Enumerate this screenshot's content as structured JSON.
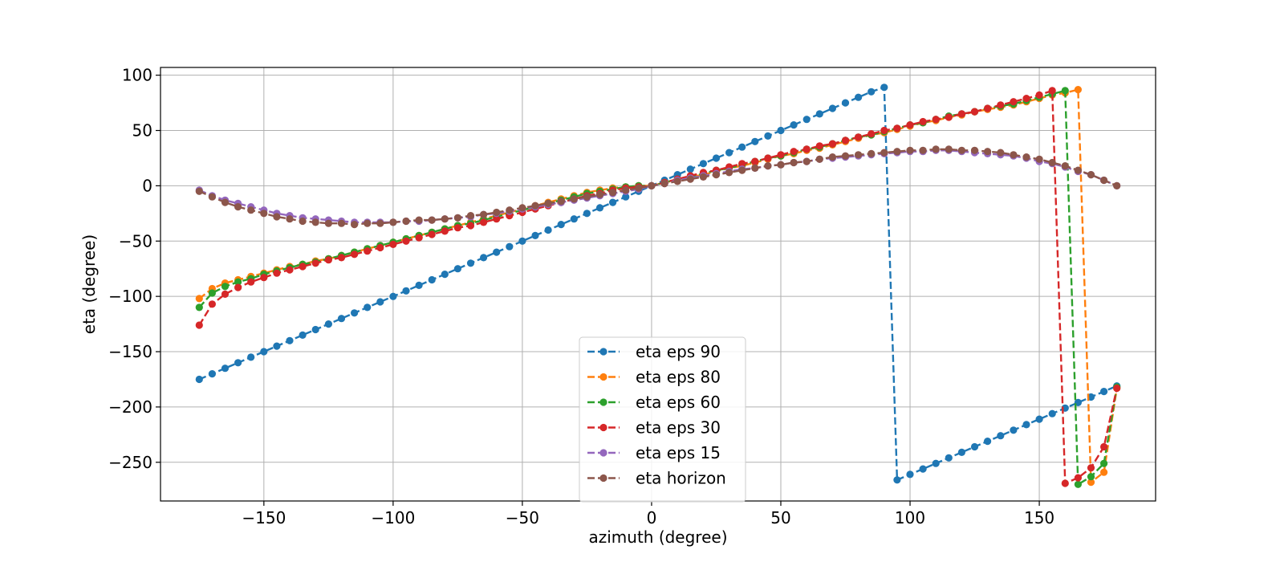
{
  "chart_data": {
    "type": "line",
    "title": "",
    "xlabel": "azimuth (degree)",
    "ylabel": "eta (degree)",
    "xlim": [
      -190,
      195
    ],
    "ylim": [
      -285,
      107
    ],
    "xticks": [
      -150,
      -100,
      -50,
      0,
      50,
      100,
      150
    ],
    "yticks": [
      100,
      50,
      0,
      -50,
      -100,
      -150,
      -200,
      -250
    ],
    "xtick_labels": [
      "−150",
      "−100",
      "−50",
      "0",
      "50",
      "100",
      "150"
    ],
    "ytick_labels": [
      "100",
      "50",
      "0",
      "−50",
      "−100",
      "−150",
      "−200",
      "−250"
    ],
    "grid": true,
    "legend_position": "lower-center",
    "line_style": "dashed",
    "marker": "circle",
    "series": [
      {
        "name": "eta eps 90",
        "color": "#1f77b4",
        "x": [
          -175,
          -170,
          -165,
          -160,
          -155,
          -150,
          -145,
          -140,
          -135,
          -130,
          -125,
          -120,
          -115,
          -110,
          -105,
          -100,
          -95,
          -90,
          -85,
          -80,
          -75,
          -70,
          -65,
          -60,
          -55,
          -50,
          -45,
          -40,
          -35,
          -30,
          -25,
          -20,
          -15,
          -10,
          -5,
          0,
          5,
          10,
          15,
          20,
          25,
          30,
          35,
          40,
          45,
          50,
          55,
          60,
          65,
          70,
          75,
          80,
          85,
          90,
          95,
          100,
          105,
          110,
          115,
          120,
          125,
          130,
          135,
          140,
          145,
          150,
          155,
          160,
          165,
          170,
          175,
          180
        ],
        "y": [
          -175,
          -170,
          -165,
          -160,
          -155,
          -150,
          -145,
          -140,
          -135,
          -130,
          -125,
          -120,
          -115,
          -110,
          -105,
          -100,
          -95,
          -90,
          -85,
          -80,
          -75,
          -70,
          -65,
          -60,
          -55,
          -50,
          -45,
          -40,
          -35,
          -30,
          -25,
          -20,
          -15,
          -10,
          -5,
          0,
          5,
          10,
          15,
          20,
          25,
          30,
          35,
          40,
          45,
          50,
          55,
          60,
          65,
          70,
          75,
          80,
          85,
          89,
          -266,
          -261,
          -256,
          -251,
          -246,
          -241,
          -236,
          -231,
          -226,
          -221,
          -216,
          -211,
          -206,
          -201,
          -196,
          -191,
          -186,
          -181
        ]
      },
      {
        "name": "eta eps 80",
        "color": "#ff7f0e",
        "x": [
          -175,
          -170,
          -165,
          -160,
          -155,
          -150,
          -145,
          -140,
          -135,
          -130,
          -125,
          -120,
          -115,
          -110,
          -105,
          -100,
          -95,
          -90,
          -85,
          -80,
          -75,
          -70,
          -65,
          -60,
          -55,
          -50,
          -45,
          -40,
          -35,
          -30,
          -25,
          -20,
          -15,
          -10,
          -5,
          0,
          5,
          10,
          15,
          20,
          25,
          30,
          35,
          40,
          45,
          50,
          55,
          60,
          65,
          70,
          75,
          80,
          85,
          90,
          95,
          100,
          105,
          110,
          115,
          120,
          125,
          130,
          135,
          140,
          145,
          150,
          155,
          160,
          165,
          170,
          175,
          180
        ],
        "y": [
          -102,
          -93,
          -88,
          -85,
          -82,
          -79,
          -76,
          -73,
          -71,
          -68,
          -66,
          -63,
          -60,
          -57,
          -54,
          -51,
          -48,
          -45,
          -42,
          -39,
          -36,
          -33,
          -30,
          -27,
          -24,
          -21,
          -18,
          -15,
          -12,
          -9,
          -6,
          -4,
          -2,
          -1,
          0,
          0,
          3,
          5,
          8,
          10,
          13,
          16,
          18,
          21,
          24,
          27,
          29,
          32,
          34,
          37,
          40,
          43,
          46,
          48,
          51,
          54,
          57,
          59,
          62,
          64,
          67,
          69,
          71,
          73,
          76,
          79,
          82,
          84,
          87,
          -268,
          -259,
          -183
        ]
      },
      {
        "name": "eta eps 60",
        "color": "#2ca02c",
        "x": [
          -175,
          -170,
          -165,
          -160,
          -155,
          -150,
          -145,
          -140,
          -135,
          -130,
          -125,
          -120,
          -115,
          -110,
          -105,
          -100,
          -95,
          -90,
          -85,
          -80,
          -75,
          -70,
          -65,
          -60,
          -55,
          -50,
          -45,
          -40,
          -35,
          -30,
          -25,
          -20,
          -15,
          -10,
          -5,
          0,
          5,
          10,
          15,
          20,
          25,
          30,
          35,
          40,
          45,
          50,
          55,
          60,
          65,
          70,
          75,
          80,
          85,
          90,
          95,
          100,
          105,
          110,
          115,
          120,
          125,
          130,
          135,
          140,
          145,
          150,
          155,
          160,
          165,
          170,
          175,
          180
        ],
        "y": [
          -110,
          -97,
          -91,
          -87,
          -84,
          -80,
          -77,
          -74,
          -71,
          -69,
          -66,
          -63,
          -60,
          -57,
          -54,
          -51,
          -48,
          -45,
          -42,
          -39,
          -36,
          -34,
          -31,
          -28,
          -25,
          -22,
          -19,
          -16,
          -13,
          -10,
          -7,
          -5,
          -3,
          -1,
          0,
          0,
          3,
          6,
          8,
          11,
          14,
          16,
          19,
          22,
          25,
          27,
          30,
          33,
          35,
          38,
          41,
          44,
          46,
          49,
          52,
          55,
          57,
          60,
          63,
          65,
          67,
          70,
          72,
          74,
          77,
          80,
          83,
          86,
          -270,
          -263,
          -251,
          -182
        ]
      },
      {
        "name": "eta eps 30",
        "color": "#d62728",
        "x": [
          -175,
          -170,
          -165,
          -160,
          -155,
          -150,
          -145,
          -140,
          -135,
          -130,
          -125,
          -120,
          -115,
          -110,
          -105,
          -100,
          -95,
          -90,
          -85,
          -80,
          -75,
          -70,
          -65,
          -60,
          -55,
          -50,
          -45,
          -40,
          -35,
          -30,
          -25,
          -20,
          -15,
          -10,
          -5,
          0,
          5,
          10,
          15,
          20,
          25,
          30,
          35,
          40,
          45,
          50,
          55,
          60,
          65,
          70,
          75,
          80,
          85,
          90,
          95,
          100,
          105,
          110,
          115,
          120,
          125,
          130,
          135,
          140,
          145,
          150,
          155,
          160,
          165,
          170,
          175,
          180
        ],
        "y": [
          -126,
          -107,
          -98,
          -92,
          -87,
          -83,
          -79,
          -76,
          -73,
          -70,
          -67,
          -65,
          -62,
          -59,
          -56,
          -53,
          -50,
          -47,
          -44,
          -41,
          -38,
          -36,
          -33,
          -30,
          -27,
          -24,
          -21,
          -18,
          -15,
          -12,
          -9,
          -7,
          -4,
          -2,
          -1,
          0,
          3,
          6,
          9,
          12,
          14,
          17,
          20,
          22,
          25,
          28,
          31,
          33,
          36,
          38,
          41,
          44,
          47,
          50,
          52,
          55,
          58,
          60,
          62,
          65,
          67,
          70,
          73,
          76,
          79,
          82,
          86,
          -269,
          -264,
          -255,
          -236,
          -183
        ]
      },
      {
        "name": "eta eps 15",
        "color": "#9467bd",
        "x": [
          -175,
          -170,
          -165,
          -160,
          -155,
          -150,
          -145,
          -140,
          -135,
          -130,
          -125,
          -120,
          -115,
          -110,
          -105,
          -100,
          -95,
          -90,
          -85,
          -80,
          -75,
          -70,
          -65,
          -60,
          -55,
          -50,
          -45,
          -40,
          -35,
          -30,
          -25,
          -20,
          -15,
          -10,
          -5,
          0,
          5,
          10,
          15,
          20,
          25,
          30,
          35,
          40,
          45,
          50,
          55,
          60,
          65,
          70,
          75,
          80,
          85,
          90,
          95,
          100,
          105,
          110,
          115,
          120,
          125,
          130,
          135,
          140,
          145,
          150,
          155,
          160,
          165,
          170,
          175,
          180
        ],
        "y": [
          -4,
          -9,
          -13,
          -16,
          -19,
          -22,
          -25,
          -27,
          -29,
          -30,
          -31,
          -32,
          -33,
          -33,
          -33,
          -33,
          -32,
          -32,
          -31,
          -30,
          -29,
          -28,
          -26,
          -25,
          -23,
          -21,
          -19,
          -17,
          -15,
          -13,
          -11,
          -9,
          -7,
          -5,
          -3,
          0,
          2,
          5,
          7,
          9,
          11,
          13,
          15,
          16,
          18,
          19,
          21,
          22,
          24,
          25,
          26,
          27,
          28,
          29,
          30,
          31,
          31,
          32,
          32,
          31,
          30,
          29,
          28,
          27,
          25,
          22,
          20,
          17,
          13,
          10,
          5,
          0
        ]
      },
      {
        "name": "eta horizon",
        "color": "#8c564b",
        "x": [
          -175,
          -170,
          -165,
          -160,
          -155,
          -150,
          -145,
          -140,
          -135,
          -130,
          -125,
          -120,
          -115,
          -110,
          -105,
          -100,
          -95,
          -90,
          -85,
          -80,
          -75,
          -70,
          -65,
          -60,
          -55,
          -50,
          -45,
          -40,
          -35,
          -30,
          -25,
          -20,
          -15,
          -10,
          -5,
          0,
          5,
          10,
          15,
          20,
          25,
          30,
          35,
          40,
          45,
          50,
          55,
          60,
          65,
          70,
          75,
          80,
          85,
          90,
          95,
          100,
          105,
          110,
          115,
          120,
          125,
          130,
          135,
          140,
          145,
          150,
          155,
          160,
          165,
          170,
          175,
          180
        ],
        "y": [
          -5,
          -10,
          -15,
          -19,
          -22,
          -25,
          -28,
          -30,
          -32,
          -33,
          -34,
          -34,
          -35,
          -34,
          -34,
          -33,
          -32,
          -31,
          -31,
          -30,
          -29,
          -27,
          -26,
          -24,
          -22,
          -20,
          -18,
          -16,
          -14,
          -12,
          -10,
          -8,
          -6,
          -4,
          -2,
          0,
          2,
          4,
          6,
          8,
          10,
          12,
          14,
          16,
          18,
          19,
          21,
          22,
          24,
          26,
          27,
          28,
          29,
          30,
          31,
          32,
          32,
          33,
          33,
          32,
          32,
          31,
          30,
          28,
          26,
          24,
          21,
          18,
          14,
          10,
          5,
          0
        ]
      }
    ]
  }
}
